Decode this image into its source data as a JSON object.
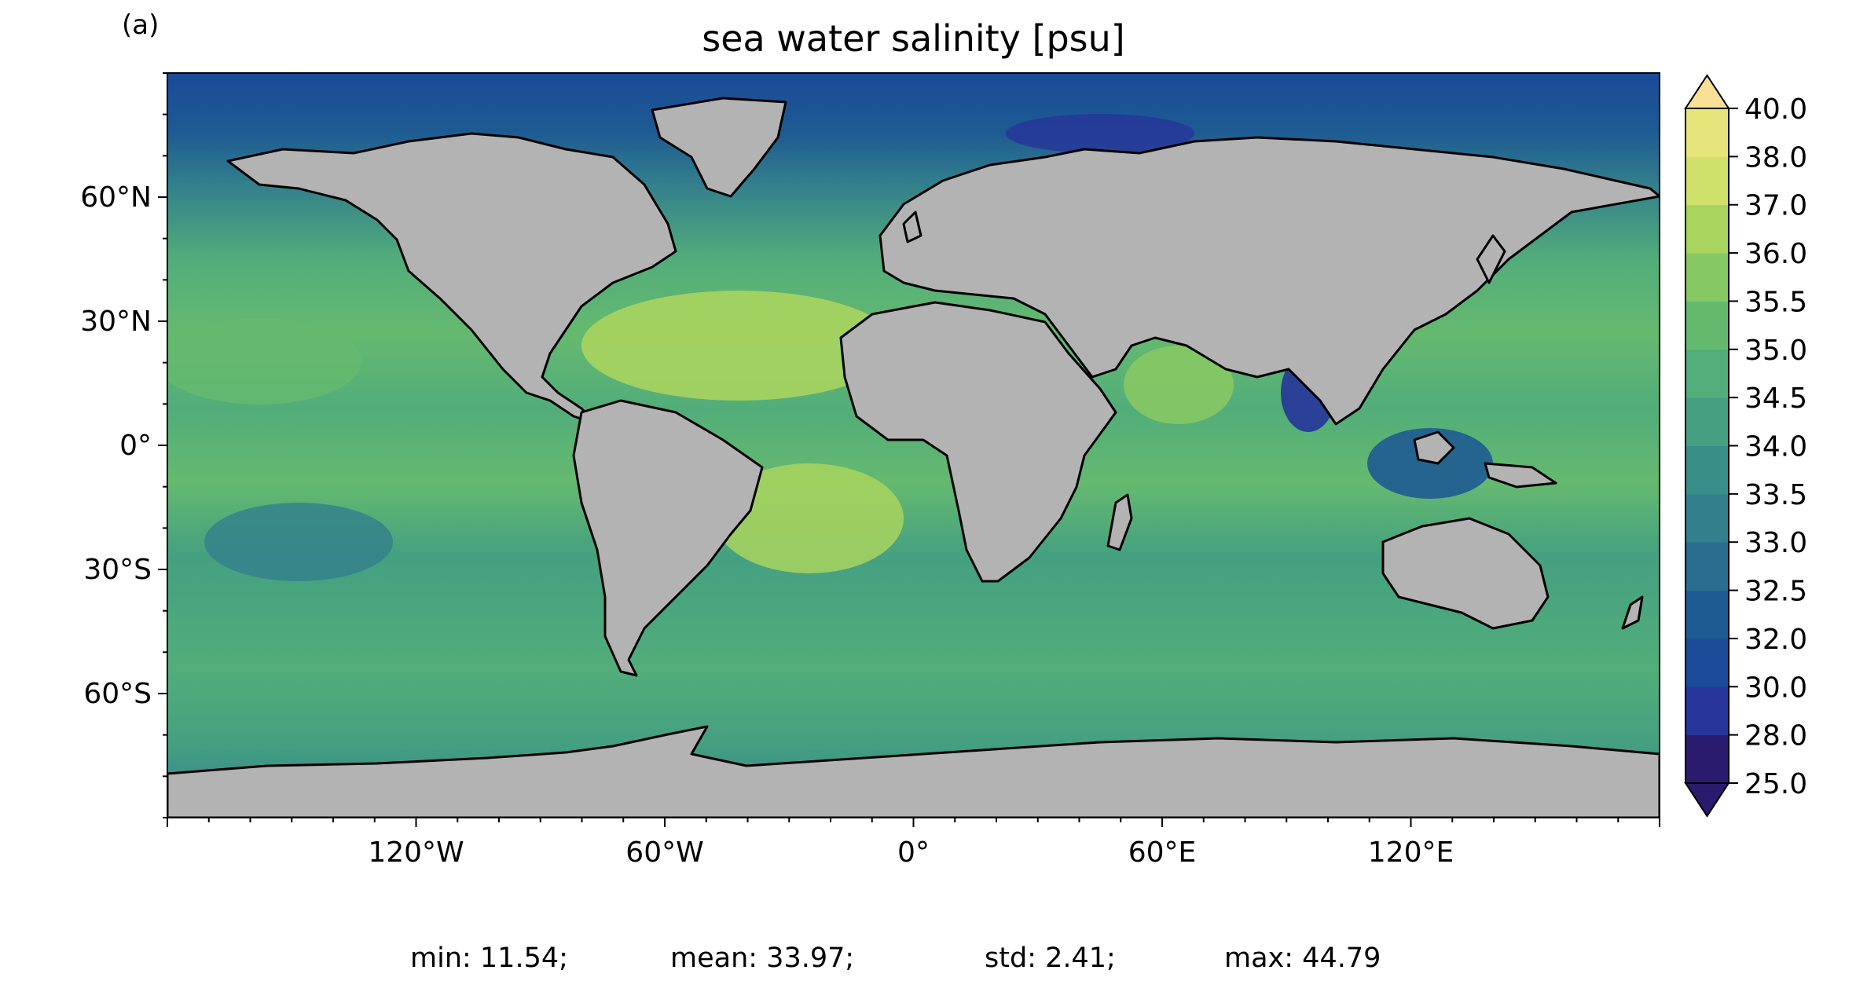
{
  "panel_label": "(a)",
  "title": "sea water salinity [psu]",
  "map": {
    "projection": "plate-carree",
    "lon_range": [
      -180,
      180
    ],
    "lat_range": [
      -90,
      90
    ],
    "land_color": "#b3b3b3",
    "coastline_color": "#000000",
    "lon_ticks": [
      {
        "value": -120,
        "label": "120°W"
      },
      {
        "value": -60,
        "label": "60°W"
      },
      {
        "value": 0,
        "label": "0°"
      },
      {
        "value": 60,
        "label": "60°E"
      },
      {
        "value": 120,
        "label": "120°E"
      }
    ],
    "lat_ticks": [
      {
        "value": 60,
        "label": "60°N"
      },
      {
        "value": 30,
        "label": "30°N"
      },
      {
        "value": 0,
        "label": "0°"
      },
      {
        "value": -30,
        "label": "30°S"
      },
      {
        "value": -60,
        "label": "60°S"
      }
    ]
  },
  "colorbar": {
    "extend": "both",
    "levels": [
      {
        "label": "25.0",
        "color": "#2b1b6e"
      },
      {
        "label": "28.0",
        "color": "#27349a"
      },
      {
        "label": "30.0",
        "color": "#1a4a98"
      },
      {
        "label": "32.0",
        "color": "#1e5b92"
      },
      {
        "label": "32.5",
        "color": "#2a6d8e"
      },
      {
        "label": "33.0",
        "color": "#337f8c"
      },
      {
        "label": "33.5",
        "color": "#3a8e88"
      },
      {
        "label": "34.0",
        "color": "#44a081"
      },
      {
        "label": "34.5",
        "color": "#52ad7a"
      },
      {
        "label": "35.0",
        "color": "#65b96f"
      },
      {
        "label": "35.5",
        "color": "#86c864"
      },
      {
        "label": "36.0",
        "color": "#a8d45e"
      },
      {
        "label": "37.0",
        "color": "#cfe06b"
      },
      {
        "label": "38.0",
        "color": "#e6e57c"
      },
      {
        "label": "40.0",
        "color": "#f5e190"
      }
    ],
    "under_color": "#2b1b6e",
    "over_color": "#f8e196"
  },
  "stats": {
    "min": "min: 11.54;",
    "mean": "mean: 33.97;",
    "std": "std: 2.41;",
    "max": "max: 44.79"
  }
}
